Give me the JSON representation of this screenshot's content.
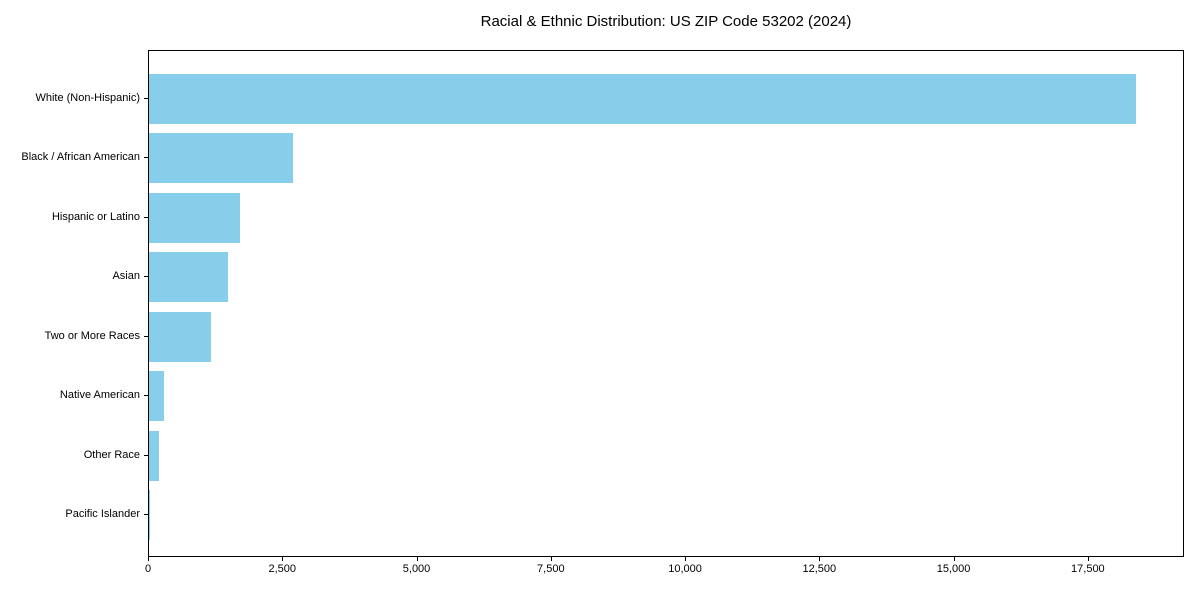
{
  "title": "Racial & Ethnic Distribution: US ZIP Code 53202 (2024)",
  "chart_data": {
    "type": "bar",
    "orientation": "horizontal",
    "title": "Racial & Ethnic Distribution: US ZIP Code 53202 (2024)",
    "categories": [
      "White (Non-Hispanic)",
      "Black / African American",
      "Hispanic or Latino",
      "Asian",
      "Two or More Races",
      "Native American",
      "Other Race",
      "Pacific Islander"
    ],
    "values": [
      18370,
      2680,
      1690,
      1480,
      1150,
      270,
      195,
      15
    ],
    "bar_color": "#87CEEB",
    "xlabel": "",
    "ylabel": "",
    "xlim": [
      0,
      19290
    ],
    "x_ticks": [
      0,
      2500,
      5000,
      7500,
      10000,
      12500,
      15000,
      17500
    ],
    "x_tick_labels": [
      "0",
      "2,500",
      "5,000",
      "7,500",
      "10,000",
      "12,500",
      "15,000",
      "17,500"
    ],
    "grid": false,
    "legend": false
  }
}
